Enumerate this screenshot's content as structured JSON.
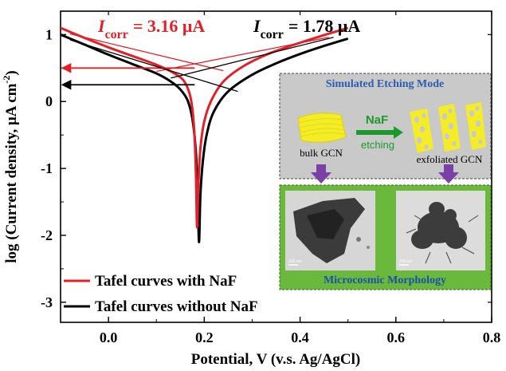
{
  "chart_data": {
    "type": "line",
    "xlabel": "Potential, V (v.s. Ag/AgCl)",
    "ylabel": "log (Current density, μA cm",
    "ylabel_sup": "-2",
    "ylabel_close": ")",
    "xlim": [
      -0.1,
      0.8
    ],
    "ylim": [
      -3.3,
      1.35
    ],
    "xticks": [
      0.0,
      0.2,
      0.4,
      0.6,
      0.8
    ],
    "xtick_labels": [
      "0.0",
      "0.2",
      "0.4",
      "0.6",
      "0.8"
    ],
    "yticks": [
      -3,
      -2,
      -1,
      0,
      1
    ],
    "ytick_labels": [
      "-3",
      "-2",
      "-1",
      "0",
      "1"
    ],
    "series": [
      {
        "name": "Tafel curves without NaF",
        "color": "#000000",
        "points": [
          [
            -0.1,
            1.0
          ],
          [
            -0.05,
            0.85
          ],
          [
            0.0,
            0.7
          ],
          [
            0.05,
            0.56
          ],
          [
            0.1,
            0.42
          ],
          [
            0.13,
            0.3
          ],
          [
            0.15,
            0.18
          ],
          [
            0.165,
            0.02
          ],
          [
            0.175,
            -0.25
          ],
          [
            0.182,
            -0.7
          ],
          [
            0.186,
            -1.3
          ],
          [
            0.189,
            -2.1
          ],
          [
            0.192,
            -1.4
          ],
          [
            0.197,
            -0.9
          ],
          [
            0.205,
            -0.5
          ],
          [
            0.22,
            -0.15
          ],
          [
            0.25,
            0.15
          ],
          [
            0.3,
            0.4
          ],
          [
            0.35,
            0.57
          ],
          [
            0.4,
            0.71
          ],
          [
            0.45,
            0.83
          ],
          [
            0.5,
            0.94
          ]
        ]
      },
      {
        "name": "Tafel curves with NaF",
        "color": "#e3202a",
        "points": [
          [
            -0.1,
            1.1
          ],
          [
            -0.05,
            0.95
          ],
          [
            0.0,
            0.81
          ],
          [
            0.05,
            0.68
          ],
          [
            0.1,
            0.55
          ],
          [
            0.13,
            0.45
          ],
          [
            0.155,
            0.33
          ],
          [
            0.168,
            0.15
          ],
          [
            0.175,
            -0.1
          ],
          [
            0.18,
            -0.55
          ],
          [
            0.183,
            -1.2
          ],
          [
            0.185,
            -1.88
          ],
          [
            0.188,
            -1.2
          ],
          [
            0.192,
            -0.7
          ],
          [
            0.2,
            -0.3
          ],
          [
            0.215,
            0.02
          ],
          [
            0.24,
            0.3
          ],
          [
            0.28,
            0.52
          ],
          [
            0.33,
            0.7
          ],
          [
            0.38,
            0.83
          ],
          [
            0.44,
            0.97
          ],
          [
            0.5,
            1.1
          ]
        ]
      }
    ],
    "tafel_fits": [
      {
        "color": "#e3202a",
        "lines": [
          [
            [
              -0.08,
              1.01
            ],
            [
              0.24,
              0.46
            ]
          ],
          [
            [
              0.1,
              0.45
            ],
            [
              0.46,
              0.96
            ]
          ]
        ],
        "icorr_marker_y": 0.5
      },
      {
        "color": "#000000",
        "lines": [
          [
            [
              -0.08,
              0.92
            ],
            [
              0.27,
              0.15
            ]
          ],
          [
            [
              0.13,
              0.35
            ],
            [
              0.47,
              0.96
            ]
          ]
        ],
        "icorr_marker_y": 0.25
      }
    ],
    "annotations": {
      "red_label": {
        "symbol": "I",
        "sub": "corr",
        "value": "= 3.16 μA"
      },
      "black_label": {
        "symbol": "I",
        "sub": "corr",
        "value": "= 1.78 μA"
      }
    },
    "legend": {
      "position": "bottom-left",
      "items": [
        "Tafel curves with NaF",
        "Tafel curves without NaF"
      ]
    }
  },
  "inset": {
    "top_title": "Simulated Etching Mode",
    "reagent": "NaF",
    "process": "etching",
    "left_label": "bulk GCN",
    "right_label": "exfoliated GCN",
    "bottom_title": "Microcosmic Morphology",
    "scale_bar_left": "200 nm",
    "scale_bar_right": "200 nm",
    "colors": {
      "top_bg": "#c9c9c9",
      "bottom_bg": "#6ab83c",
      "gcn": "#f4ec27",
      "arrow": "#7b3fa6",
      "reagent": "#1a9a2a"
    }
  }
}
